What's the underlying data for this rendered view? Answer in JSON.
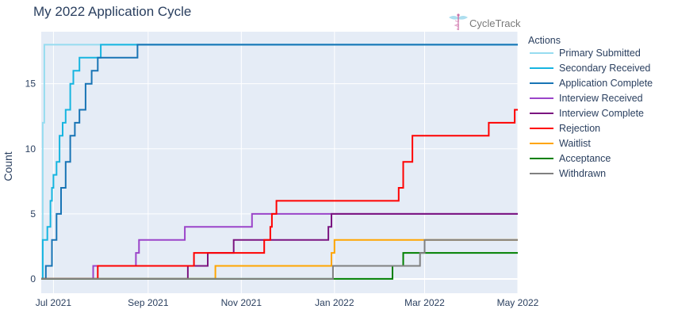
{
  "chart_data": {
    "type": "line",
    "line_shape": "step",
    "title": "My 2022 Application Cycle",
    "xlabel": "",
    "ylabel": "Count",
    "xlim": [
      "2021-06-23",
      "2022-05-01"
    ],
    "ylim": [
      -1.1,
      19
    ],
    "x_ticks": [
      {
        "label": "Jul 2021",
        "date": "2021-07-01"
      },
      {
        "label": "Sep 2021",
        "date": "2021-09-01"
      },
      {
        "label": "Nov 2021",
        "date": "2021-11-01"
      },
      {
        "label": "Jan 2022",
        "date": "2022-01-01"
      },
      {
        "label": "Mar 2022",
        "date": "2022-03-01"
      },
      {
        "label": "May 2022",
        "date": "2022-05-01"
      }
    ],
    "y_ticks": [
      0,
      5,
      10,
      15
    ],
    "grid": true,
    "plot_bg": "#e5ecf6",
    "legend_title": "Actions",
    "legend_position": "right",
    "series": [
      {
        "name": "Primary Submitted",
        "color": "#96dcf0",
        "points": [
          [
            "2021-06-23",
            0
          ],
          [
            "2021-06-24",
            12
          ],
          [
            "2021-06-25",
            18
          ],
          [
            "2022-05-01",
            18
          ]
        ]
      },
      {
        "name": "Secondary Received",
        "color": "#17b5e0",
        "points": [
          [
            "2021-06-23",
            0
          ],
          [
            "2021-06-24",
            3
          ],
          [
            "2021-06-27",
            4
          ],
          [
            "2021-06-29",
            6
          ],
          [
            "2021-06-30",
            7
          ],
          [
            "2021-07-01",
            8
          ],
          [
            "2021-07-03",
            9
          ],
          [
            "2021-07-05",
            11
          ],
          [
            "2021-07-07",
            12
          ],
          [
            "2021-07-09",
            13
          ],
          [
            "2021-07-12",
            15
          ],
          [
            "2021-07-14",
            16
          ],
          [
            "2021-07-18",
            17
          ],
          [
            "2021-08-01",
            18
          ],
          [
            "2022-05-01",
            18
          ]
        ]
      },
      {
        "name": "Application Complete",
        "color": "#1874b5",
        "points": [
          [
            "2021-06-23",
            0
          ],
          [
            "2021-06-26",
            1
          ],
          [
            "2021-06-30",
            3
          ],
          [
            "2021-07-03",
            5
          ],
          [
            "2021-07-06",
            7
          ],
          [
            "2021-07-09",
            9
          ],
          [
            "2021-07-12",
            11
          ],
          [
            "2021-07-15",
            12
          ],
          [
            "2021-07-18",
            13
          ],
          [
            "2021-07-22",
            15
          ],
          [
            "2021-07-26",
            16
          ],
          [
            "2021-07-30",
            17
          ],
          [
            "2021-08-25",
            18
          ],
          [
            "2022-05-01",
            18
          ]
        ]
      },
      {
        "name": "Interview Received",
        "color": "#9b44c9",
        "points": [
          [
            "2021-06-23",
            0
          ],
          [
            "2021-07-27",
            1
          ],
          [
            "2021-08-24",
            2
          ],
          [
            "2021-08-26",
            3
          ],
          [
            "2021-09-25",
            4
          ],
          [
            "2021-11-08",
            5
          ],
          [
            "2022-05-01",
            5
          ]
        ]
      },
      {
        "name": "Interview Complete",
        "color": "#7b1580",
        "points": [
          [
            "2021-06-23",
            0
          ],
          [
            "2021-09-27",
            1
          ],
          [
            "2021-10-10",
            2
          ],
          [
            "2021-10-27",
            3
          ],
          [
            "2021-12-28",
            4
          ],
          [
            "2021-12-30",
            5
          ],
          [
            "2022-05-01",
            5
          ]
        ]
      },
      {
        "name": "Rejection",
        "color": "#ff0000",
        "points": [
          [
            "2021-06-23",
            0
          ],
          [
            "2021-07-30",
            1
          ],
          [
            "2021-10-01",
            2
          ],
          [
            "2021-11-16",
            3
          ],
          [
            "2021-11-20",
            4
          ],
          [
            "2021-11-21",
            5
          ],
          [
            "2021-11-24",
            6
          ],
          [
            "2022-02-12",
            7
          ],
          [
            "2022-02-15",
            9
          ],
          [
            "2022-02-21",
            11
          ],
          [
            "2022-04-12",
            12
          ],
          [
            "2022-04-29",
            13
          ],
          [
            "2022-05-01",
            13
          ]
        ]
      },
      {
        "name": "Waitlist",
        "color": "#ffa500",
        "points": [
          [
            "2021-06-23",
            0
          ],
          [
            "2021-10-15",
            1
          ],
          [
            "2021-12-30",
            2
          ],
          [
            "2022-01-01",
            3
          ],
          [
            "2022-05-01",
            3
          ]
        ]
      },
      {
        "name": "Acceptance",
        "color": "#008000",
        "points": [
          [
            "2021-06-23",
            0
          ],
          [
            "2022-02-08",
            1
          ],
          [
            "2022-02-15",
            2
          ],
          [
            "2022-05-01",
            2
          ]
        ]
      },
      {
        "name": "Withdrawn",
        "color": "#808080",
        "points": [
          [
            "2021-06-23",
            0
          ],
          [
            "2021-12-31",
            1
          ],
          [
            "2022-02-26",
            2
          ],
          [
            "2022-03-01",
            3
          ],
          [
            "2022-05-01",
            3
          ]
        ]
      }
    ]
  },
  "logo": {
    "text": "CycleTrack",
    "icon": "caduceus-icon"
  }
}
